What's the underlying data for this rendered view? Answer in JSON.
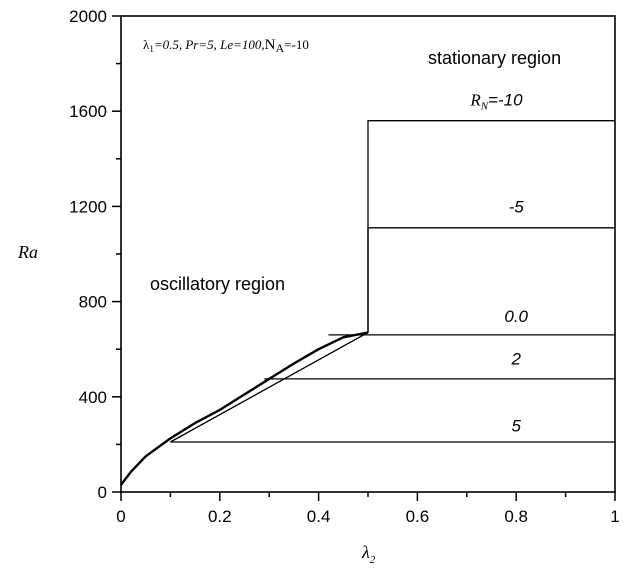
{
  "chart_data": {
    "type": "line",
    "xlabel_symbol": "λ",
    "xlabel_sub": "2",
    "ylabel": "Ra",
    "xlim": [
      0,
      1
    ],
    "ylim": [
      0,
      2000
    ],
    "x_ticks": [
      "0",
      "0.2",
      "0.4",
      "0.6",
      "0.8",
      "1"
    ],
    "x_tick_values": [
      0,
      0.2,
      0.4,
      0.6,
      0.8,
      1
    ],
    "y_ticks": [
      "0",
      "400",
      "800",
      "1200",
      "1600",
      "2000"
    ],
    "y_tick_values": [
      0,
      400,
      800,
      1200,
      1600,
      2000
    ],
    "params": {
      "lambda_symbol": "λ",
      "lambda_sub": "1",
      "lambda_value": "=0.5, ",
      "pr_name": "Pr",
      "pr_value": "=5, ",
      "le_name": "Le",
      "le_value": "=100,",
      "na_name": "N",
      "na_sub": "A",
      "na_value": "=-10"
    },
    "regions": {
      "stationary": "stationary region",
      "oscillatory": "oscillatory region"
    },
    "rn_label_prefix": "R",
    "rn_label_sub": "N",
    "oscillatory_curve": {
      "x": [
        0,
        0.02,
        0.05,
        0.1,
        0.15,
        0.2,
        0.25,
        0.3,
        0.35,
        0.4,
        0.45,
        0.5
      ],
      "y": [
        30,
        85,
        150,
        225,
        290,
        345,
        410,
        475,
        540,
        600,
        650,
        670
      ]
    },
    "series": [
      {
        "name": "-10",
        "label": "=-10",
        "x": [
          0.1,
          0.5,
          0.5,
          1.0
        ],
        "y": [
          210,
          670,
          1560,
          1560
        ],
        "label_x": 0.76,
        "label_y": 1625
      },
      {
        "name": "-5",
        "label": "-5",
        "x": [
          0.5,
          0.5,
          1.0
        ],
        "y": [
          670,
          1110,
          1110
        ],
        "label_x": 0.8,
        "label_y": 1175
      },
      {
        "name": "0.0",
        "label": "0.0",
        "x": [
          0.42,
          1.0
        ],
        "y": [
          660,
          660
        ],
        "label_x": 0.8,
        "label_y": 715
      },
      {
        "name": "2",
        "label": "2",
        "x": [
          0.29,
          1.0
        ],
        "y": [
          475,
          475
        ],
        "label_x": 0.8,
        "label_y": 535
      },
      {
        "name": "5",
        "label": "5",
        "x": [
          0.1,
          1.0
        ],
        "y": [
          210,
          210
        ],
        "label_x": 0.8,
        "label_y": 255
      }
    ],
    "grid": false
  }
}
